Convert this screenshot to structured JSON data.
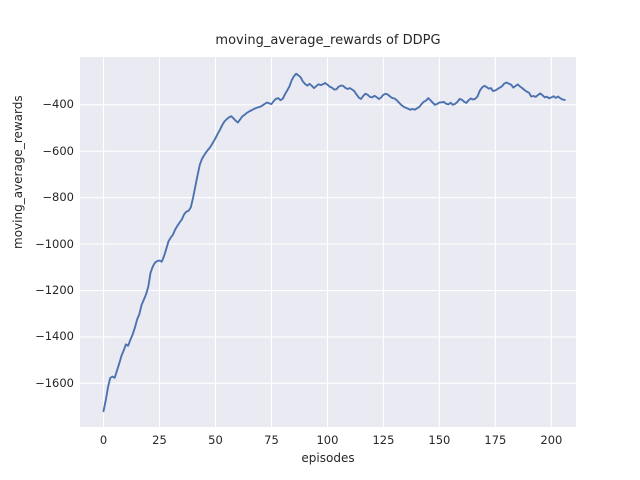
{
  "colors": {
    "figure_bg": "#ffffff",
    "axes_bg": "#eaeaf2",
    "grid": "#ffffff",
    "line": "#4c72b0",
    "text": "#262626"
  },
  "chart_data": {
    "type": "line",
    "title": "moving_average_rewards of DDPG",
    "xlabel": "episodes",
    "ylabel": "moving_average_rewards",
    "grid": true,
    "legend_position": "none",
    "xlim": [
      -10.5,
      211
    ],
    "ylim": [
      -1788,
      -194
    ],
    "xticks": [
      {
        "v": 0,
        "label": "0"
      },
      {
        "v": 25,
        "label": "25"
      },
      {
        "v": 50,
        "label": "50"
      },
      {
        "v": 75,
        "label": "75"
      },
      {
        "v": 100,
        "label": "100"
      },
      {
        "v": 125,
        "label": "125"
      },
      {
        "v": 150,
        "label": "150"
      },
      {
        "v": 175,
        "label": "175"
      },
      {
        "v": 200,
        "label": "200"
      }
    ],
    "yticks": [
      {
        "v": -400,
        "label": "−400"
      },
      {
        "v": -600,
        "label": "−600"
      },
      {
        "v": -800,
        "label": "−800"
      },
      {
        "v": -1000,
        "label": "−1000"
      },
      {
        "v": -1200,
        "label": "−1200"
      },
      {
        "v": -1400,
        "label": "−1400"
      },
      {
        "v": -1600,
        "label": "−1600"
      }
    ],
    "series": [
      {
        "name": "moving_average_rewards",
        "points": [
          [
            0,
            -1720
          ],
          [
            1,
            -1672
          ],
          [
            2,
            -1616
          ],
          [
            3,
            -1577
          ],
          [
            4,
            -1571
          ],
          [
            5,
            -1576
          ],
          [
            6,
            -1546
          ],
          [
            7,
            -1515
          ],
          [
            8,
            -1482
          ],
          [
            9,
            -1458
          ],
          [
            10,
            -1432
          ],
          [
            11,
            -1438
          ],
          [
            12,
            -1412
          ],
          [
            13,
            -1390
          ],
          [
            14,
            -1360
          ],
          [
            15,
            -1325
          ],
          [
            16,
            -1302
          ],
          [
            17,
            -1262
          ],
          [
            18,
            -1240
          ],
          [
            19,
            -1216
          ],
          [
            20,
            -1183
          ],
          [
            21,
            -1124
          ],
          [
            22,
            -1096
          ],
          [
            23,
            -1080
          ],
          [
            24,
            -1073
          ],
          [
            25,
            -1071
          ],
          [
            26,
            -1076
          ],
          [
            27,
            -1052
          ],
          [
            28,
            -1022
          ],
          [
            29,
            -988
          ],
          [
            30,
            -972
          ],
          [
            31,
            -960
          ],
          [
            32,
            -937
          ],
          [
            33,
            -921
          ],
          [
            34,
            -907
          ],
          [
            35,
            -893
          ],
          [
            36,
            -872
          ],
          [
            37,
            -860
          ],
          [
            38,
            -856
          ],
          [
            39,
            -842
          ],
          [
            40,
            -800
          ],
          [
            41,
            -752
          ],
          [
            42,
            -703
          ],
          [
            43,
            -658
          ],
          [
            44,
            -633
          ],
          [
            45,
            -616
          ],
          [
            46,
            -602
          ],
          [
            47,
            -590
          ],
          [
            48,
            -577
          ],
          [
            49,
            -561
          ],
          [
            50,
            -544
          ],
          [
            51,
            -525
          ],
          [
            52,
            -507
          ],
          [
            53,
            -488
          ],
          [
            54,
            -472
          ],
          [
            55,
            -462
          ],
          [
            56,
            -454
          ],
          [
            57,
            -449
          ],
          [
            58,
            -458
          ],
          [
            59,
            -468
          ],
          [
            60,
            -476
          ],
          [
            61,
            -463
          ],
          [
            62,
            -450
          ],
          [
            63,
            -443
          ],
          [
            64,
            -435
          ],
          [
            65,
            -429
          ],
          [
            66,
            -424
          ],
          [
            67,
            -419
          ],
          [
            68,
            -414
          ],
          [
            69,
            -411
          ],
          [
            70,
            -408
          ],
          [
            71,
            -403
          ],
          [
            72,
            -396
          ],
          [
            73,
            -390
          ],
          [
            74,
            -394
          ],
          [
            75,
            -397
          ],
          [
            76,
            -384
          ],
          [
            77,
            -374
          ],
          [
            78,
            -371
          ],
          [
            79,
            -380
          ],
          [
            80,
            -374
          ],
          [
            81,
            -355
          ],
          [
            82,
            -339
          ],
          [
            83,
            -321
          ],
          [
            84,
            -295
          ],
          [
            85,
            -277
          ],
          [
            86,
            -266
          ],
          [
            87,
            -273
          ],
          [
            88,
            -281
          ],
          [
            89,
            -299
          ],
          [
            90,
            -310
          ],
          [
            91,
            -317
          ],
          [
            92,
            -310
          ],
          [
            93,
            -318
          ],
          [
            94,
            -328
          ],
          [
            95,
            -320
          ],
          [
            96,
            -311
          ],
          [
            97,
            -315
          ],
          [
            98,
            -311
          ],
          [
            99,
            -306
          ],
          [
            100,
            -313
          ],
          [
            101,
            -322
          ],
          [
            102,
            -326
          ],
          [
            103,
            -334
          ],
          [
            104,
            -333
          ],
          [
            105,
            -322
          ],
          [
            106,
            -317
          ],
          [
            107,
            -318
          ],
          [
            108,
            -327
          ],
          [
            109,
            -332
          ],
          [
            110,
            -328
          ],
          [
            111,
            -334
          ],
          [
            112,
            -341
          ],
          [
            113,
            -356
          ],
          [
            114,
            -369
          ],
          [
            115,
            -375
          ],
          [
            116,
            -361
          ],
          [
            117,
            -352
          ],
          [
            118,
            -357
          ],
          [
            119,
            -366
          ],
          [
            120,
            -368
          ],
          [
            121,
            -361
          ],
          [
            122,
            -367
          ],
          [
            123,
            -375
          ],
          [
            124,
            -368
          ],
          [
            125,
            -357
          ],
          [
            126,
            -352
          ],
          [
            127,
            -356
          ],
          [
            128,
            -364
          ],
          [
            129,
            -371
          ],
          [
            130,
            -373
          ],
          [
            131,
            -381
          ],
          [
            132,
            -391
          ],
          [
            133,
            -401
          ],
          [
            134,
            -408
          ],
          [
            135,
            -413
          ],
          [
            136,
            -417
          ],
          [
            137,
            -421
          ],
          [
            138,
            -418
          ],
          [
            139,
            -421
          ],
          [
            140,
            -415
          ],
          [
            141,
            -409
          ],
          [
            142,
            -397
          ],
          [
            143,
            -387
          ],
          [
            144,
            -382
          ],
          [
            145,
            -371
          ],
          [
            146,
            -380
          ],
          [
            147,
            -391
          ],
          [
            148,
            -400
          ],
          [
            149,
            -396
          ],
          [
            150,
            -390
          ],
          [
            151,
            -389
          ],
          [
            152,
            -388
          ],
          [
            153,
            -395
          ],
          [
            154,
            -398
          ],
          [
            155,
            -391
          ],
          [
            156,
            -400
          ],
          [
            157,
            -396
          ],
          [
            158,
            -388
          ],
          [
            159,
            -375
          ],
          [
            160,
            -378
          ],
          [
            161,
            -386
          ],
          [
            162,
            -392
          ],
          [
            163,
            -381
          ],
          [
            164,
            -373
          ],
          [
            165,
            -377
          ],
          [
            166,
            -374
          ],
          [
            167,
            -364
          ],
          [
            168,
            -340
          ],
          [
            169,
            -326
          ],
          [
            170,
            -318
          ],
          [
            171,
            -323
          ],
          [
            172,
            -330
          ],
          [
            173,
            -328
          ],
          [
            174,
            -341
          ],
          [
            175,
            -338
          ],
          [
            176,
            -332
          ],
          [
            177,
            -326
          ],
          [
            178,
            -320
          ],
          [
            179,
            -308
          ],
          [
            180,
            -304
          ],
          [
            181,
            -309
          ],
          [
            182,
            -313
          ],
          [
            183,
            -326
          ],
          [
            184,
            -319
          ],
          [
            185,
            -312
          ],
          [
            186,
            -321
          ],
          [
            187,
            -328
          ],
          [
            188,
            -336
          ],
          [
            189,
            -343
          ],
          [
            190,
            -348
          ],
          [
            191,
            -364
          ],
          [
            192,
            -362
          ],
          [
            193,
            -366
          ],
          [
            194,
            -358
          ],
          [
            195,
            -351
          ],
          [
            196,
            -358
          ],
          [
            197,
            -368
          ],
          [
            198,
            -365
          ],
          [
            199,
            -372
          ],
          [
            200,
            -368
          ],
          [
            201,
            -363
          ],
          [
            202,
            -370
          ],
          [
            203,
            -364
          ],
          [
            204,
            -372
          ],
          [
            205,
            -377
          ],
          [
            206,
            -379
          ]
        ]
      }
    ]
  }
}
